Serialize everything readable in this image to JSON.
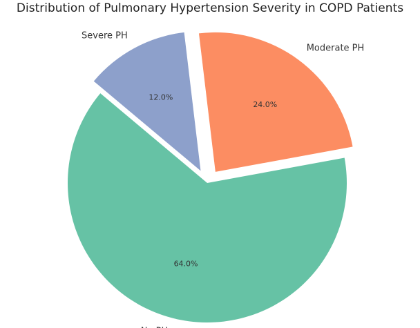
{
  "chart_data": {
    "type": "pie",
    "title": "Distribution of Pulmonary Hypertension Severity in COPD Patients",
    "categories": [
      "No PH",
      "Moderate PH",
      "Severe PH"
    ],
    "values": [
      64.0,
      24.0,
      12.0
    ],
    "percent_labels": [
      "64.0%",
      "24.0%",
      "12.0%"
    ],
    "colors": [
      "#66c2a5",
      "#fc8d62",
      "#8da0cb"
    ],
    "exploded": [
      false,
      true,
      true
    ],
    "start_angle_deg": 140,
    "direction": "counterclockwise",
    "legend": "none"
  }
}
